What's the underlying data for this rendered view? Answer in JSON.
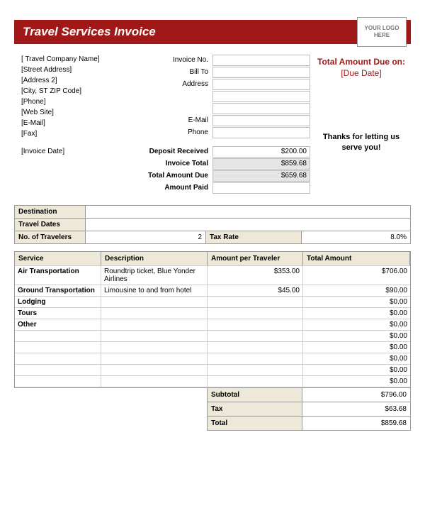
{
  "header": {
    "title": "Travel Services Invoice",
    "logo_text": "YOUR LOGO HERE"
  },
  "company": {
    "name": "[ Travel Company Name]",
    "street": "[Street Address]",
    "address2": "[Address 2]",
    "city_st_zip": "[City, ST  ZIP Code]",
    "phone": "[Phone]",
    "website": "[Web Site]",
    "email": "[E-Mail]",
    "fax": "[Fax]",
    "invoice_date": "[Invoice Date]"
  },
  "bill": {
    "invoice_no_label": "Invoice No.",
    "bill_to_label": "Bill To",
    "address_label": "Address",
    "email_label": "E-Mail",
    "phone_label": "Phone",
    "deposit_received_label": "Deposit Received",
    "invoice_total_label": "Invoice Total",
    "total_amount_due_label": "Total Amount Due",
    "amount_paid_label": "Amount Paid",
    "deposit_received": "$200.00",
    "invoice_total": "$859.68",
    "total_amount_due": "$659.68"
  },
  "right": {
    "due_label": "Total Amount Due on:",
    "due_date": "[Due Date]",
    "thanks1": "Thanks for letting us",
    "thanks2": "serve you!"
  },
  "meta": {
    "destination_label": "Destination",
    "travel_dates_label": "Travel Dates",
    "travelers_label": "No. of Travelers",
    "travelers": "2",
    "tax_rate_label": "Tax Rate",
    "tax_rate": "8.0%"
  },
  "services": {
    "headers": {
      "c1": "Service",
      "c2": "Description",
      "c3": "Amount per Traveler",
      "c4": "Total Amount"
    },
    "rows": [
      {
        "service": "Air Transportation",
        "desc": "Roundtrip ticket, Blue Yonder Airlines",
        "per": "$353.00",
        "total": "$706.00"
      },
      {
        "service": "Ground Transportation",
        "desc": "Limousine to and from hotel",
        "per": "$45.00",
        "total": "$90.00"
      },
      {
        "service": "Lodging",
        "desc": "",
        "per": "",
        "total": "$0.00"
      },
      {
        "service": "Tours",
        "desc": "",
        "per": "",
        "total": "$0.00"
      },
      {
        "service": "Other",
        "desc": "",
        "per": "",
        "total": "$0.00"
      },
      {
        "service": "",
        "desc": "",
        "per": "",
        "total": "$0.00"
      },
      {
        "service": "",
        "desc": "",
        "per": "",
        "total": "$0.00"
      },
      {
        "service": "",
        "desc": "",
        "per": "",
        "total": "$0.00"
      },
      {
        "service": "",
        "desc": "",
        "per": "",
        "total": "$0.00"
      },
      {
        "service": "",
        "desc": "",
        "per": "",
        "total": "$0.00"
      }
    ]
  },
  "totals": {
    "subtotal_label": "Subtotal",
    "subtotal": "$796.00",
    "tax_label": "Tax",
    "tax": "$63.68",
    "total_label": "Total",
    "total": "$859.68"
  },
  "colors": {
    "brand": "#a01818",
    "header_bg": "#eee8d8",
    "shaded": "#e5e5e5"
  }
}
